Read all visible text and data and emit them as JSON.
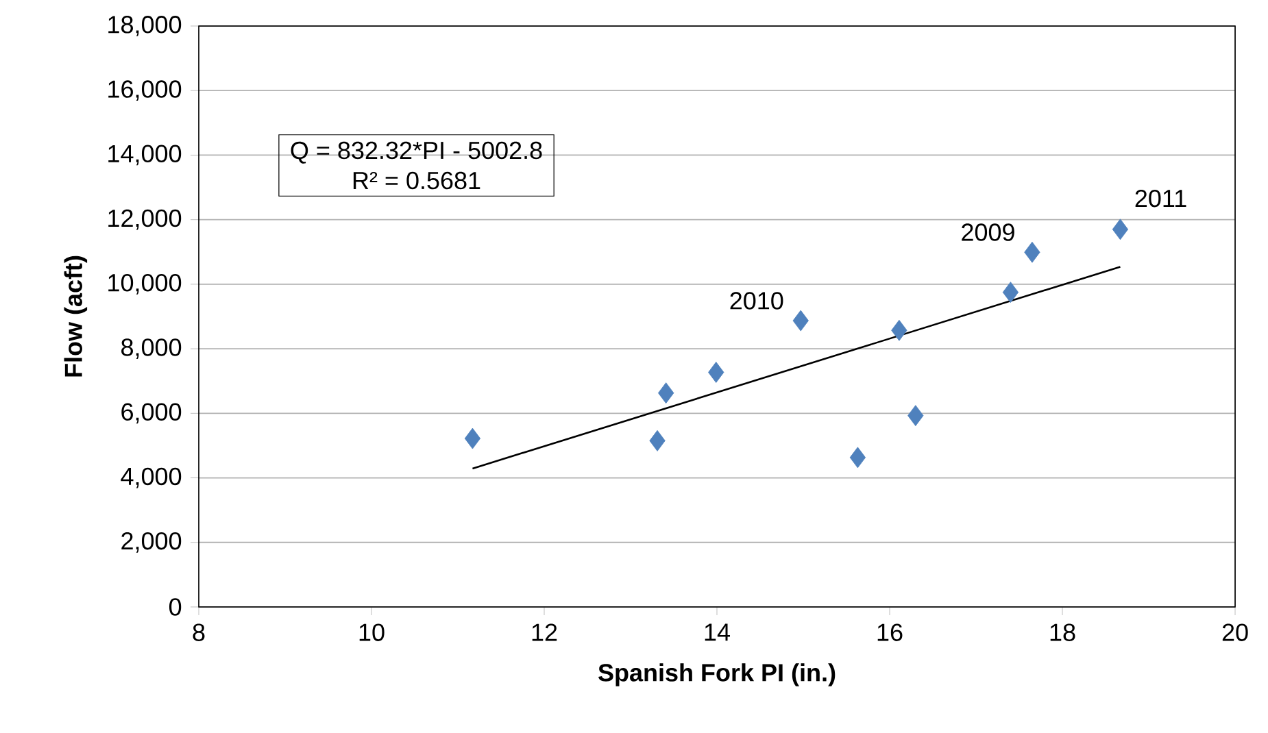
{
  "chart_data": {
    "type": "scatter",
    "xlabel": "Spanish Fork PI (in.)",
    "ylabel": "Flow (acft)",
    "xlim": [
      8,
      20
    ],
    "ylim": [
      0,
      18000
    ],
    "xticks": [
      8,
      10,
      12,
      14,
      16,
      18,
      20
    ],
    "yticks": [
      {
        "value": 0,
        "label": "0"
      },
      {
        "value": 2000,
        "label": "2,000"
      },
      {
        "value": 4000,
        "label": "4,000"
      },
      {
        "value": 6000,
        "label": "6,000"
      },
      {
        "value": 8000,
        "label": "8,000"
      },
      {
        "value": 10000,
        "label": "10,000"
      },
      {
        "value": 12000,
        "label": "12,000"
      },
      {
        "value": 14000,
        "label": "14,000"
      },
      {
        "value": 16000,
        "label": "16,000"
      },
      {
        "value": 18000,
        "label": "18,000"
      }
    ],
    "grid": "y",
    "marker": "diamond",
    "annotations": [
      "Q = 832.32*PI - 5002.8",
      "R² = 0.5681",
      {
        "text": "2010",
        "x": 14.97,
        "y": 8870
      },
      {
        "text": "2009",
        "x": 17.65,
        "y": 10990
      },
      {
        "text": "2011",
        "x": 18.67,
        "y": 11700
      }
    ],
    "series": [
      {
        "color": "#4f81bd",
        "x": [
          11.17,
          13.31,
          13.41,
          13.99,
          14.97,
          15.63,
          16.11,
          16.3,
          17.4,
          17.65,
          18.67
        ],
        "values": [
          5220,
          5150,
          6630,
          7270,
          8870,
          4630,
          8570,
          5930,
          9750,
          10990,
          11700
        ]
      },
      {
        "type": "line",
        "color": "#000000",
        "marker": "none",
        "x": [
          11.17,
          18.67
        ],
        "values": [
          4290,
          10540
        ]
      }
    ]
  }
}
